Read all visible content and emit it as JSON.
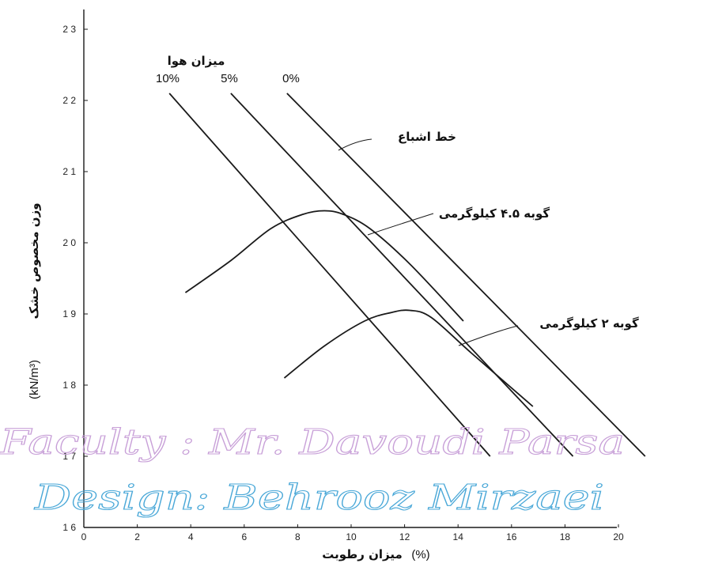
{
  "chart_data": {
    "type": "line",
    "xlabel": "میزان رطوبت",
    "xlabel_unit": "(%)",
    "ylabel": "وزن مخصوص خشک",
    "ylabel_unit": "(kN/m³)",
    "xlim": [
      0,
      21
    ],
    "ylim": [
      16,
      23
    ],
    "x_ticks": [
      0,
      2,
      4,
      6,
      8,
      10,
      12,
      14,
      16,
      18,
      20
    ],
    "y_ticks": [
      16,
      17,
      18,
      19,
      20,
      21,
      22,
      23
    ],
    "y_tick_labels": [
      "1 6",
      "1 7",
      "1 8",
      "1 9",
      "2 0",
      "2 1",
      "2 2",
      "2 3"
    ],
    "air_voids_title": "میزان هوا",
    "series": [
      {
        "name": "0%",
        "x": [
          7.6,
          21.0
        ],
        "y": [
          22.1,
          17.0
        ]
      },
      {
        "name": "5%",
        "x": [
          5.5,
          18.3
        ],
        "y": [
          22.1,
          17.0
        ]
      },
      {
        "name": "10%",
        "x": [
          3.2,
          15.2
        ],
        "y": [
          22.1,
          17.0
        ]
      },
      {
        "name": "گوبه ۴.۵ کیلوگرمی",
        "x": [
          3.8,
          5.5,
          7.0,
          8.2,
          9.0,
          9.7,
          10.7,
          12.2,
          14.2
        ],
        "y": [
          19.3,
          19.75,
          20.2,
          20.4,
          20.45,
          20.4,
          20.2,
          19.7,
          18.9
        ]
      },
      {
        "name": "گوبه ۲ کیلوگرمی",
        "x": [
          7.5,
          9.0,
          10.5,
          11.5,
          12.2,
          13.0,
          14.5,
          16.8
        ],
        "y": [
          18.1,
          18.55,
          18.9,
          19.02,
          19.05,
          18.95,
          18.45,
          17.7
        ]
      }
    ],
    "annotations": [
      {
        "text": "خط اشباع",
        "target": "0%"
      },
      {
        "text": "گوبه ۴.۵ کیلوگرمی",
        "target": "compaction-4.5kg"
      },
      {
        "text": "گوبه ۲ کیلوگرمی",
        "target": "compaction-2kg"
      }
    ]
  },
  "watermark": {
    "line1": "Faculty : Mr. Davoudi Parsa",
    "line2": "Design: Behrooz Mirzaei",
    "color1": "#c8a0d8",
    "color2": "#4aa8d8"
  },
  "colors": {
    "ink": "#1a1a1a"
  }
}
